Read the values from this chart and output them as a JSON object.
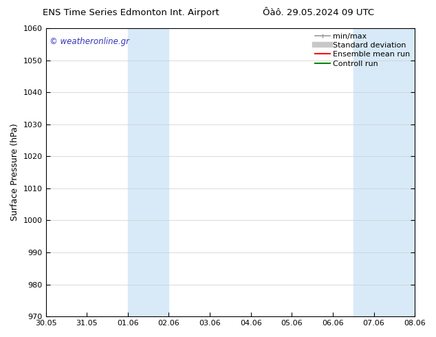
{
  "title_left": "ENS Time Series Edmonton Int. Airport",
  "title_right": "Ôàô. 29.05.2024 09 UTC",
  "ylabel": "Surface Pressure (hPa)",
  "ylim": [
    970,
    1060
  ],
  "yticks": [
    970,
    980,
    990,
    1000,
    1010,
    1020,
    1030,
    1040,
    1050,
    1060
  ],
  "xtick_labels": [
    "30.05",
    "31.05",
    "01.06",
    "02.06",
    "03.06",
    "04.06",
    "05.06",
    "06.06",
    "07.06",
    "08.06"
  ],
  "watermark": "© weatheronline.gr",
  "watermark_color": "#3333bb",
  "bg_color": "#ffffff",
  "shaded_regions": [
    {
      "xstart": 2,
      "xend": 3,
      "color": "#d8eaf8"
    },
    {
      "xstart": 7.5,
      "xend": 9.0,
      "color": "#d8eaf8"
    }
  ],
  "legend_entries": [
    {
      "label": "min/max",
      "color": "#999999",
      "linestyle": "-",
      "linewidth": 1.2,
      "marker": true
    },
    {
      "label": "Standard deviation",
      "color": "#c8c8c8",
      "linestyle": "-",
      "linewidth": 6.0,
      "marker": false
    },
    {
      "label": "Ensemble mean run",
      "color": "#ff0000",
      "linestyle": "-",
      "linewidth": 1.5,
      "marker": false
    },
    {
      "label": "Controll run",
      "color": "#008800",
      "linestyle": "-",
      "linewidth": 1.5,
      "marker": false
    }
  ],
  "grid_color": "#cccccc",
  "tick_color": "#000000",
  "spine_color": "#000000",
  "title_fontsize": 9.5,
  "ylabel_fontsize": 9,
  "tick_fontsize": 8,
  "watermark_fontsize": 8.5,
  "legend_fontsize": 8
}
